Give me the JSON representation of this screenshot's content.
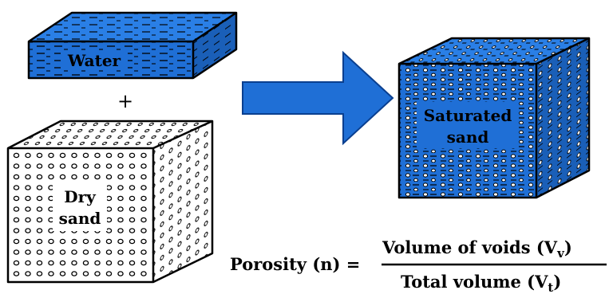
{
  "labels": {
    "water": "Water",
    "plus": "+",
    "dry_line1": "Dry",
    "dry_line2": "sand",
    "sat_line1": "Saturated",
    "sat_line2": "sand"
  },
  "formula": {
    "lhs": "Porosity (n) =",
    "numerator": "Volume of voids (V",
    "numerator_sub": "v",
    "numerator_close": ")",
    "denominator": "Total volume (V",
    "denominator_sub": "t",
    "denominator_close": ")"
  },
  "colors": {
    "water_front": "#1f6fd6",
    "water_top": "#2a7fe6",
    "water_side": "#1a5fb8",
    "arrow": "#1f6fd6",
    "outline": "#000000"
  }
}
